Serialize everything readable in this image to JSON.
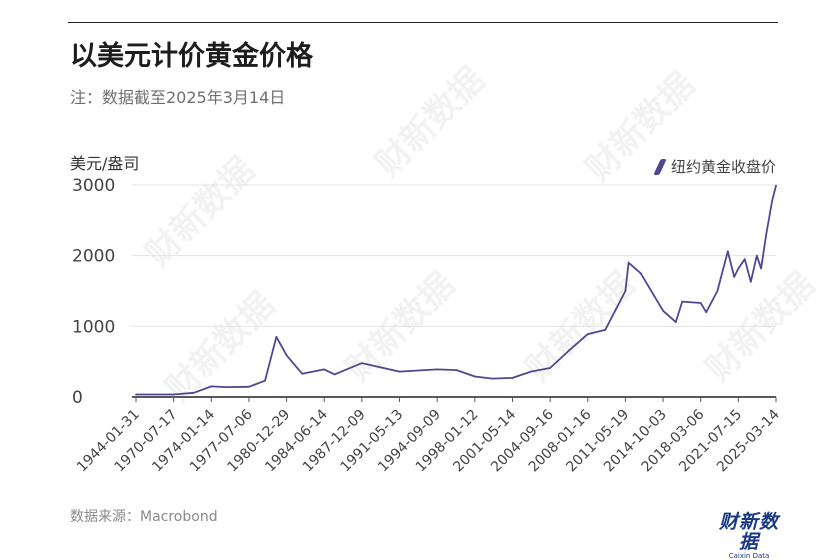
{
  "header": {
    "title": "以美元计价黄金价格",
    "subtitle": "注：数据截至2025年3月14日",
    "unit_label": "美元/盎司"
  },
  "legend": {
    "label": "纽约黄金收盘价",
    "color": "#4d4990"
  },
  "footer": {
    "source": "数据来源：Macrobond"
  },
  "brand": {
    "name": "财新数据",
    "tagline": "Caixin Data"
  },
  "watermark": {
    "text": "财新数据"
  },
  "chart_data": {
    "type": "line",
    "series": [
      {
        "name": "纽约黄金收盘价",
        "x": [
          "1944-01-31",
          "1968-01-01",
          "1970-07-17",
          "1972-06-01",
          "1974-01-14",
          "1975-06-01",
          "1977-07-06",
          "1979-01-01",
          "1980-01-21",
          "1980-12-29",
          "1982-06-01",
          "1984-06-14",
          "1985-06-01",
          "1987-12-09",
          "1991-05-13",
          "1994-09-09",
          "1996-06-01",
          "1998-01-12",
          "1999-08-01",
          "2001-05-14",
          "2003-01-01",
          "2004-09-16",
          "2006-05-01",
          "2008-01-16",
          "2009-08-01",
          "2011-05-19",
          "2011-09-01",
          "2012-10-01",
          "2014-10-03",
          "2015-12-01",
          "2016-07-01",
          "2018-03-06",
          "2018-09-01",
          "2019-09-01",
          "2020-08-06",
          "2021-03-01",
          "2021-07-15",
          "2022-03-01",
          "2022-10-01",
          "2023-05-01",
          "2023-10-01",
          "2024-04-01",
          "2024-10-30",
          "2025-03-14"
        ],
        "values": [
          35,
          35,
          36,
          60,
          150,
          140,
          145,
          230,
          850,
          590,
          330,
          390,
          320,
          480,
          360,
          390,
          380,
          290,
          260,
          270,
          360,
          410,
          650,
          890,
          950,
          1500,
          1900,
          1750,
          1220,
          1060,
          1350,
          1330,
          1200,
          1500,
          2060,
          1700,
          1820,
          1950,
          1630,
          2000,
          1820,
          2300,
          2780,
          2990
        ]
      }
    ],
    "x_ticks": [
      "1944-01-31",
      "1970-07-17",
      "1974-01-14",
      "1977-07-06",
      "1980-12-29",
      "1984-06-14",
      "1987-12-09",
      "1991-05-13",
      "1994-09-09",
      "1998-01-12",
      "2001-05-14",
      "2004-09-16",
      "2008-01-16",
      "2011-05-19",
      "2014-10-03",
      "2018-03-06",
      "2021-07-15",
      "2025-03-14"
    ],
    "y_ticks": [
      0,
      1000,
      2000,
      3000
    ],
    "ylim": [
      0,
      3000
    ],
    "grid": true
  }
}
